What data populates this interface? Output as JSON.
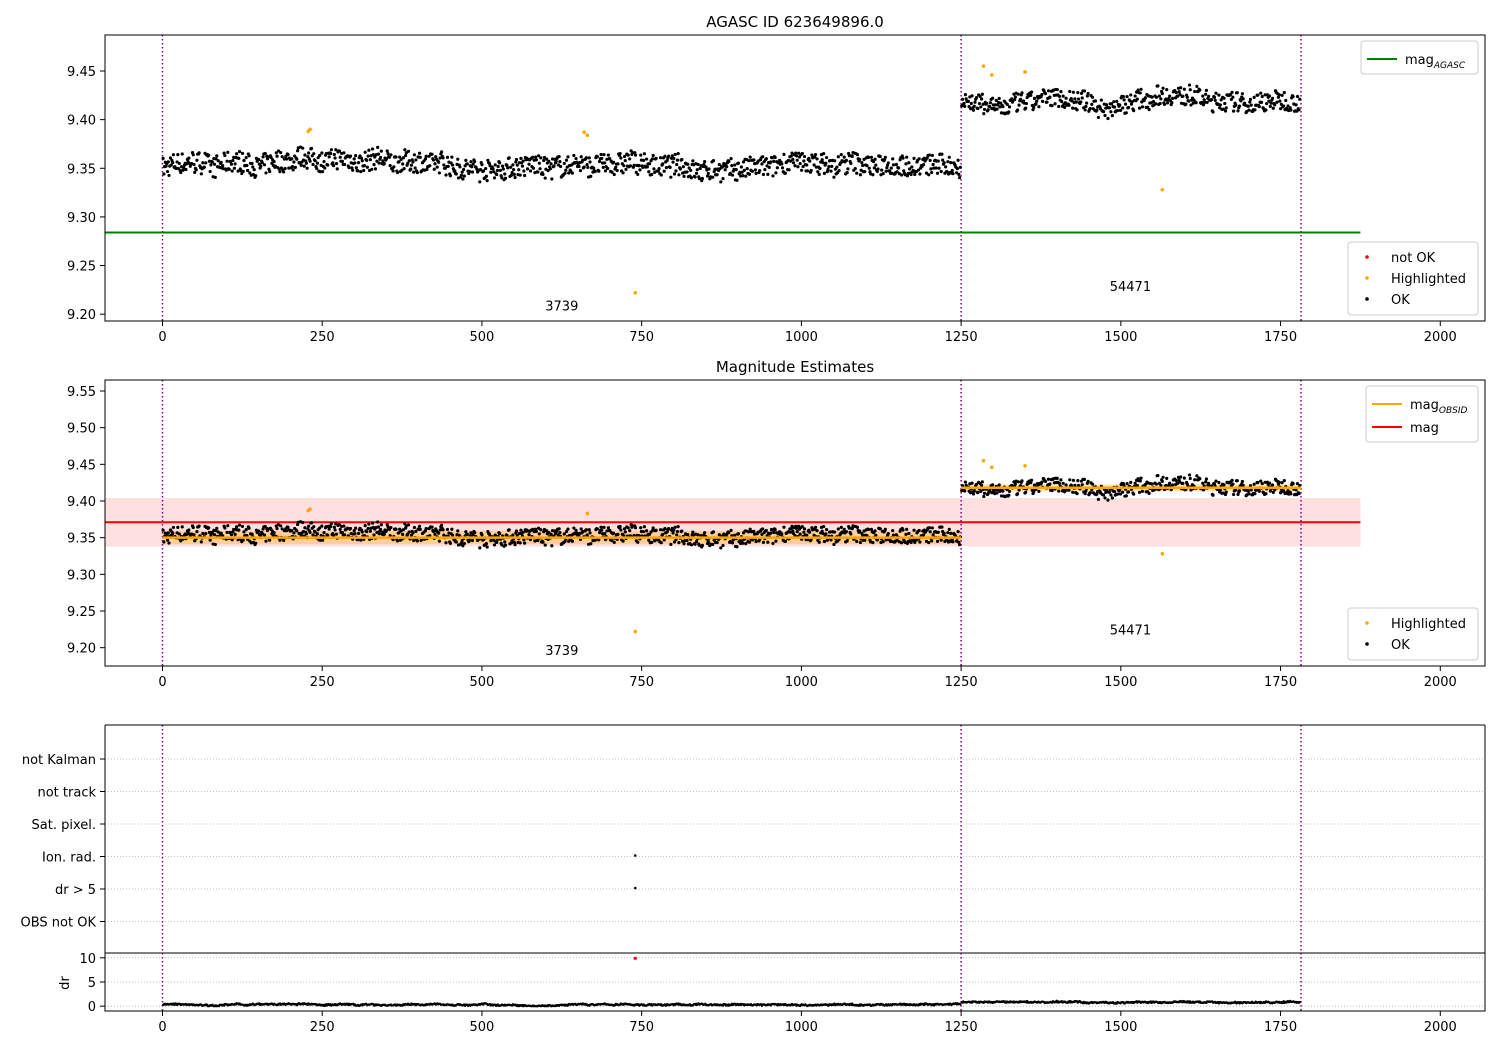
{
  "chart_data": [
    {
      "type": "scatter",
      "title": "AGASC ID 623649896.0",
      "xlim": [
        -90,
        2070
      ],
      "ylim": [
        9.193,
        9.487
      ],
      "xticks": [
        0,
        250,
        500,
        750,
        1000,
        1250,
        1500,
        1750,
        2000
      ],
      "yticks": [
        9.2,
        9.25,
        9.3,
        9.35,
        9.4,
        9.45
      ],
      "ytick_labels": [
        "9.20",
        "9.25",
        "9.30",
        "9.35",
        "9.40",
        "9.45"
      ],
      "obs_boundaries": [
        0,
        1250,
        1782
      ],
      "obs_labels": [
        {
          "text": "3739",
          "x": 625,
          "y": 9.204
        },
        {
          "text": "54471",
          "x": 1515,
          "y": 9.224
        }
      ],
      "segments": [
        {
          "x0": 0,
          "x1": 1250,
          "level": 9.352,
          "amp": 0.011
        },
        {
          "x0": 1250,
          "x1": 1782,
          "level": 9.418,
          "amp": 0.01
        }
      ],
      "mag_agasc": {
        "value": 9.284,
        "x0": -90,
        "x1": 1875
      },
      "highlighted": [
        [
          228,
          9.388
        ],
        [
          231,
          9.39
        ],
        [
          660,
          9.387
        ],
        [
          665,
          9.384
        ],
        [
          740,
          9.222
        ],
        [
          1285,
          9.455
        ],
        [
          1298,
          9.446
        ],
        [
          1350,
          9.449
        ],
        [
          1565,
          9.328
        ]
      ],
      "legend_top": [
        {
          "label": "mag",
          "sub": "AGASC",
          "color": "#008000"
        }
      ],
      "legend_bottom": [
        {
          "label": "not OK",
          "color": "#ff0000"
        },
        {
          "label": "Highlighted",
          "color": "#ffa500"
        },
        {
          "label": "OK",
          "color": "#000000"
        }
      ]
    },
    {
      "type": "scatter",
      "title": "Magnitude Estimates",
      "xlim": [
        -90,
        2070
      ],
      "ylim": [
        9.175,
        9.565
      ],
      "xticks": [
        0,
        250,
        500,
        750,
        1000,
        1250,
        1500,
        1750,
        2000
      ],
      "yticks": [
        9.2,
        9.25,
        9.3,
        9.35,
        9.4,
        9.45,
        9.5,
        9.55
      ],
      "ytick_labels": [
        "9.20",
        "9.25",
        "9.30",
        "9.35",
        "9.40",
        "9.45",
        "9.50",
        "9.55"
      ],
      "obs_boundaries": [
        0,
        1250,
        1782
      ],
      "obs_labels": [
        {
          "text": "3739",
          "x": 625,
          "y": 9.19
        },
        {
          "text": "54471",
          "x": 1515,
          "y": 9.218
        }
      ],
      "segments": [
        {
          "x0": 0,
          "x1": 1250,
          "level": 9.352,
          "amp": 0.011
        },
        {
          "x0": 1250,
          "x1": 1782,
          "level": 9.418,
          "amp": 0.01
        }
      ],
      "mag_obsid": [
        {
          "x0": 0,
          "x1": 1250,
          "value": 9.35,
          "lo": 9.341,
          "hi": 9.359
        },
        {
          "x0": 1250,
          "x1": 1782,
          "value": 9.418,
          "lo": 9.413,
          "hi": 9.423
        }
      ],
      "mag": {
        "value": 9.371,
        "lo": 9.338,
        "hi": 9.404,
        "x0": -90,
        "x1": 1875
      },
      "highlighted": [
        [
          228,
          9.387
        ],
        [
          231,
          9.389
        ],
        [
          665,
          9.383
        ],
        [
          740,
          9.222
        ],
        [
          1285,
          9.455
        ],
        [
          1298,
          9.446
        ],
        [
          1350,
          9.448
        ],
        [
          1565,
          9.328
        ]
      ],
      "legend_top": [
        {
          "label": "mag",
          "sub": "OBSID",
          "color": "#ffa500"
        },
        {
          "label": "mag",
          "color": "#ff0000"
        }
      ],
      "legend_bottom": [
        {
          "label": "Highlighted",
          "color": "#ffa500"
        },
        {
          "label": "OK",
          "color": "#000000"
        }
      ]
    },
    {
      "type": "scatter",
      "xlim": [
        -90,
        2070
      ],
      "flag_rows": [
        "not Kalman",
        "not track",
        "Sat. pixel.",
        "Ion. rad.",
        "dr > 5",
        "OBS not OK"
      ],
      "flag_points": [
        {
          "row": "Ion. rad.",
          "x": 740
        },
        {
          "row": "dr > 5",
          "x": 740
        }
      ],
      "obs_boundaries": [
        0,
        1250,
        1782
      ]
    },
    {
      "type": "scatter",
      "ylabel": "dr",
      "xlim": [
        -90,
        2070
      ],
      "ylim": [
        -1,
        11
      ],
      "xticks": [
        0,
        250,
        500,
        750,
        1000,
        1250,
        1500,
        1750,
        2000
      ],
      "yticks": [
        0,
        5,
        10
      ],
      "dr_segments": [
        {
          "x0": 0,
          "x1": 1250,
          "level": 0.3
        },
        {
          "x0": 1250,
          "x1": 1782,
          "level": 0.8
        }
      ],
      "outlier": {
        "x": 740,
        "y": 9.9,
        "color": "#ff0000"
      },
      "obs_boundaries": [
        0,
        1250,
        1782
      ]
    }
  ]
}
